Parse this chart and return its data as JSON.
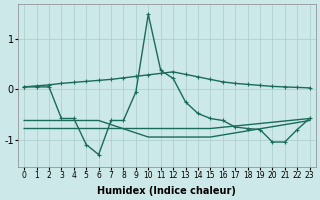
{
  "xlabel": "Humidex (Indice chaleur)",
  "bg_color": "#cce8e8",
  "line_color": "#1a6b5a",
  "grid_color": "#aacccc",
  "xlim": [
    -0.5,
    23.5
  ],
  "ylim": [
    -1.55,
    1.7
  ],
  "yticks": [
    -1,
    0,
    1
  ],
  "xticks": [
    0,
    1,
    2,
    3,
    4,
    5,
    6,
    7,
    8,
    9,
    10,
    11,
    12,
    13,
    14,
    15,
    16,
    17,
    18,
    19,
    20,
    21,
    22,
    23
  ],
  "line1_x": [
    0,
    1,
    2,
    3,
    4,
    5,
    6,
    7,
    8,
    9,
    10,
    11,
    12,
    13,
    14,
    15,
    16,
    17,
    18,
    19,
    20,
    21,
    22,
    23
  ],
  "line1_y": [
    0.05,
    0.07,
    0.09,
    0.12,
    0.14,
    0.16,
    0.18,
    0.2,
    0.23,
    0.26,
    0.29,
    0.32,
    0.35,
    0.3,
    0.25,
    0.2,
    0.15,
    0.12,
    0.1,
    0.08,
    0.06,
    0.05,
    0.04,
    0.03
  ],
  "line2_x": [
    0,
    1,
    2,
    3,
    4,
    5,
    6,
    7,
    8,
    9,
    10,
    11,
    12,
    13,
    14,
    15,
    16,
    17,
    18,
    19,
    20,
    21,
    22,
    23
  ],
  "line2_y": [
    0.05,
    0.05,
    0.05,
    -0.58,
    -0.58,
    -1.1,
    -1.3,
    -0.62,
    -0.62,
    -0.05,
    1.5,
    0.38,
    0.22,
    -0.25,
    -0.48,
    -0.58,
    -0.62,
    -0.75,
    -0.78,
    -0.8,
    -1.05,
    -1.05,
    -0.8,
    -0.58
  ],
  "line3_x": [
    0,
    10,
    15,
    23
  ],
  "line3_y": [
    -0.78,
    -0.78,
    -0.78,
    -0.58
  ],
  "line4_x": [
    0,
    6,
    10,
    15,
    23
  ],
  "line4_y": [
    -0.62,
    -0.62,
    -0.95,
    -0.95,
    -0.62
  ]
}
